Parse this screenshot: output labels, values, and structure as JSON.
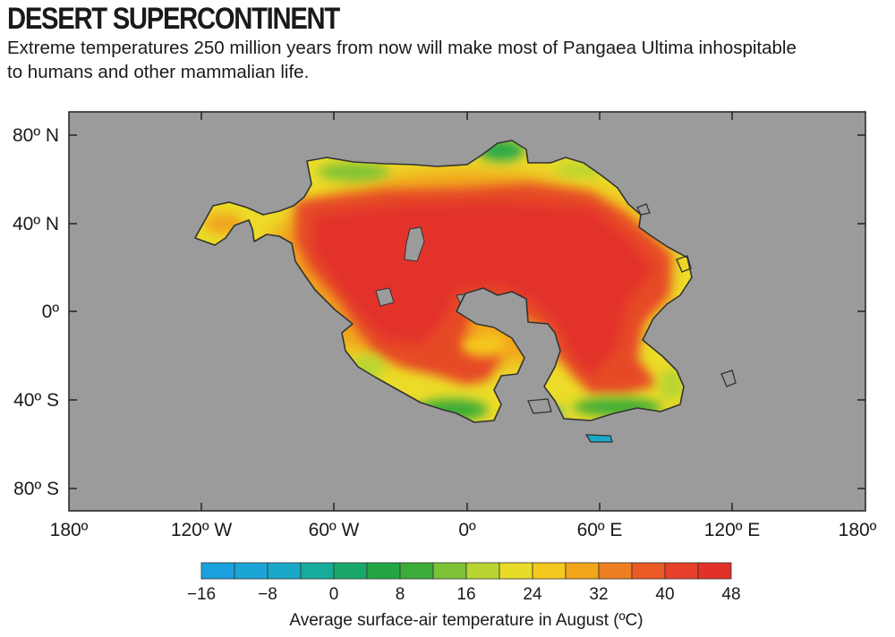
{
  "header": {
    "title": "DESERT SUPERCONTINENT",
    "subtitle": "Extreme temperatures 250 million years from now will make most of Pangaea Ultima inhospitable to humans and other mammalian life."
  },
  "map": {
    "ocean_color": "#9b9b9b",
    "continent_name": "Pangaea Ultima",
    "x_ticks": [
      "180º",
      "120º W",
      "60º W",
      "0º",
      "60º E",
      "120º E",
      "180º"
    ],
    "y_ticks": [
      "80º N",
      "40º N",
      "0º",
      "40º S",
      "80º S"
    ]
  },
  "colorbar": {
    "labels": [
      "−16",
      "−8",
      "0",
      "8",
      "16",
      "24",
      "32",
      "40",
      "48"
    ],
    "title": "Average surface-air temperature in August (ºC)",
    "colors": [
      "#1aa0dc",
      "#1ba4d6",
      "#1aa8c8",
      "#16ab9a",
      "#1aa86a",
      "#24a646",
      "#3aac38",
      "#7dc236",
      "#b8d532",
      "#e9dc28",
      "#f4c81e",
      "#f1a51b",
      "#ee7f22",
      "#ea5a25",
      "#e6402a",
      "#e23129"
    ]
  }
}
